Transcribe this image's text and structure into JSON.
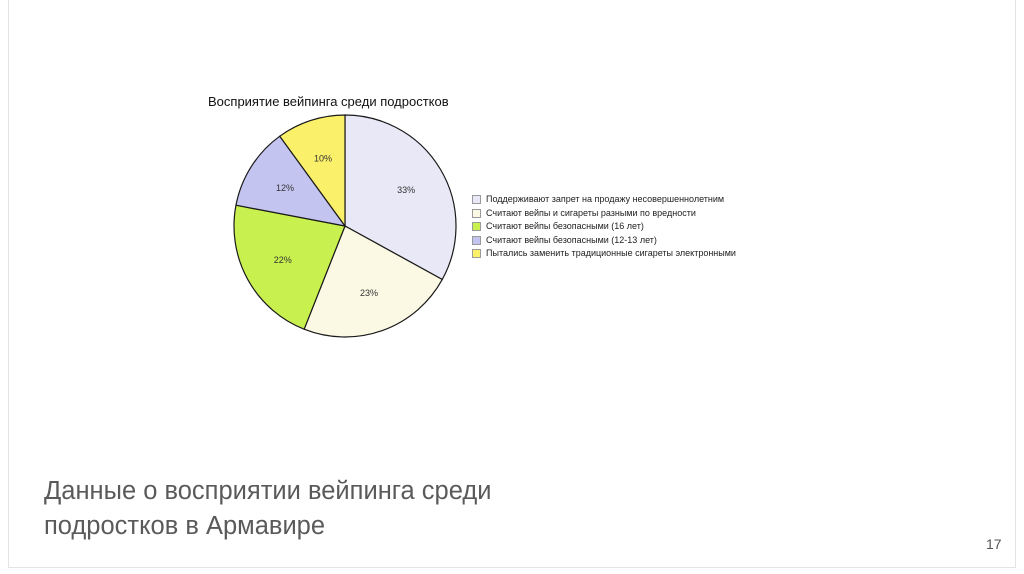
{
  "chart_data": {
    "type": "pie",
    "title": "Восприятие вейпинга среди подростков",
    "categories": [
      "Поддерживают запрет на продажу несовершеннолетним",
      "Считают вейпы и сигареты разными по вредности",
      "Считают вейпы безопасными (16 лет)",
      "Считают вейпы безопасными (12-13 лет)",
      "Пытались заменить традиционные сигареты электронными"
    ],
    "values": [
      33,
      23,
      22,
      12,
      10
    ],
    "value_labels": [
      "33%",
      "23%",
      "22%",
      "12%",
      "10%"
    ],
    "colors": [
      "#e8e8f7",
      "#fbf9e3",
      "#c8f04f",
      "#c4c4f1",
      "#fbf06a"
    ],
    "legend_placement": "right"
  },
  "slide": {
    "title_line1": "Данные о восприятии вейпинга среди",
    "title_line2": "подростков в Армавире",
    "page_number": "17"
  }
}
